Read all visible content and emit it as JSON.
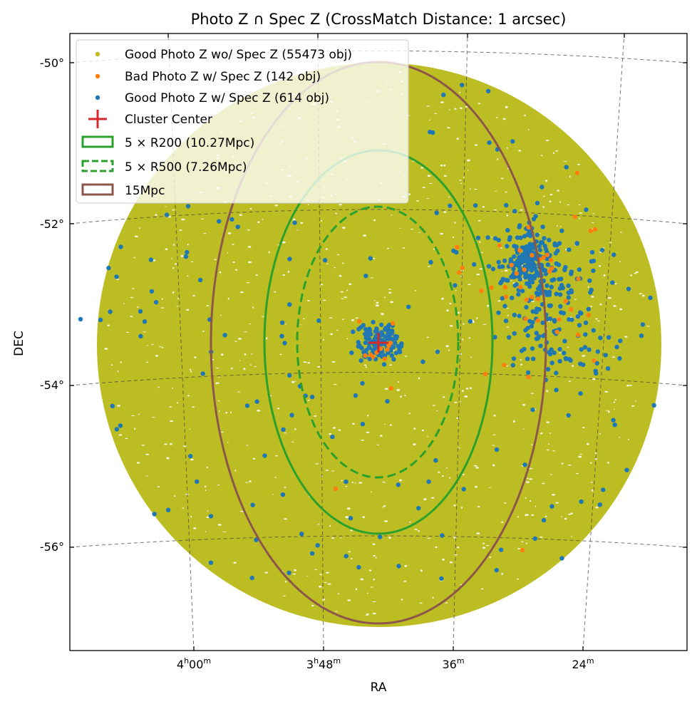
{
  "chart_data": {
    "type": "scatter",
    "title": "Photo Z ∩ Spec Z (CrossMatch Distance: 1 arcsec)",
    "xlabel": "RA",
    "ylabel": "DEC",
    "projection": "celestial (WCS, tangent-plane)",
    "grid": true,
    "legend_position": "top-left",
    "x_ticks": [
      {
        "value": "4h00m",
        "main": "4",
        "u1": "h",
        "min": "00",
        "u2": "m"
      },
      {
        "value": "3h48m",
        "main": "3",
        "u1": "h",
        "min": "48",
        "u2": "m"
      },
      {
        "value": "3h36m",
        "main": "",
        "u1": "",
        "min": "36",
        "u2": "m"
      },
      {
        "value": "3h24m",
        "main": "",
        "u1": "",
        "min": "24",
        "u2": "m"
      }
    ],
    "y_ticks": [
      "-50°",
      "-52°",
      "-54°",
      "-56°"
    ],
    "y_tick_values": [
      -50,
      -52,
      -54,
      -56
    ],
    "x_tick_values_hours": [
      4.0,
      3.8,
      3.6,
      3.4
    ],
    "cluster_center": {
      "ra_hours": 3.705,
      "dec_deg": -53.45
    },
    "field_radius_deg": 3.5,
    "series": [
      {
        "name": "Good Photo Z wo/ Spec Z (55473 obj)",
        "kind": "points",
        "color": "#bcbd22",
        "count": 55473
      },
      {
        "name": "Bad Photo Z w/ Spec Z (142 obj)",
        "kind": "points",
        "color": "#ff7f0e",
        "count": 142
      },
      {
        "name": "Good Photo Z w/ Spec Z (614 obj)",
        "kind": "points",
        "color": "#1f77b4",
        "count": 614
      },
      {
        "name": "Cluster Center",
        "kind": "marker",
        "color": "#d62728"
      },
      {
        "name": "5 × R200 (10.27Mpc)",
        "kind": "circle",
        "color": "#2ca02c",
        "style": "solid",
        "radius_mpc": 10.27
      },
      {
        "name": "5 × R500 (7.26Mpc)",
        "kind": "circle",
        "color": "#2ca02c",
        "style": "dashed",
        "radius_mpc": 7.26
      },
      {
        "name": "15Mpc",
        "kind": "circle",
        "color": "#8c564b",
        "style": "solid",
        "radius_mpc": 15
      }
    ]
  }
}
